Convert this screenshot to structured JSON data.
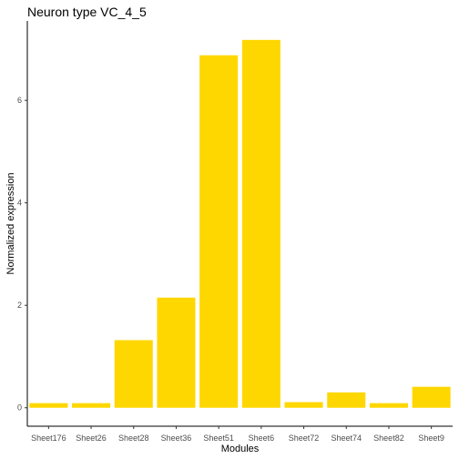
{
  "chart_data": {
    "type": "bar",
    "title": "Neuron type VC_4_5",
    "xlabel": "Modules",
    "ylabel": "Normalized expression",
    "categories": [
      "Sheet176",
      "Sheet26",
      "Sheet28",
      "Sheet36",
      "Sheet51",
      "Sheet6",
      "Sheet72",
      "Sheet74",
      "Sheet82",
      "Sheet9"
    ],
    "values": [
      0.09,
      0.09,
      1.32,
      2.15,
      6.88,
      7.18,
      0.11,
      0.3,
      0.09,
      0.41
    ],
    "yticks": [
      0,
      2,
      4,
      6
    ],
    "ylim": [
      -0.36,
      7.55
    ],
    "grid": false,
    "bar_color": "#FFD700"
  }
}
